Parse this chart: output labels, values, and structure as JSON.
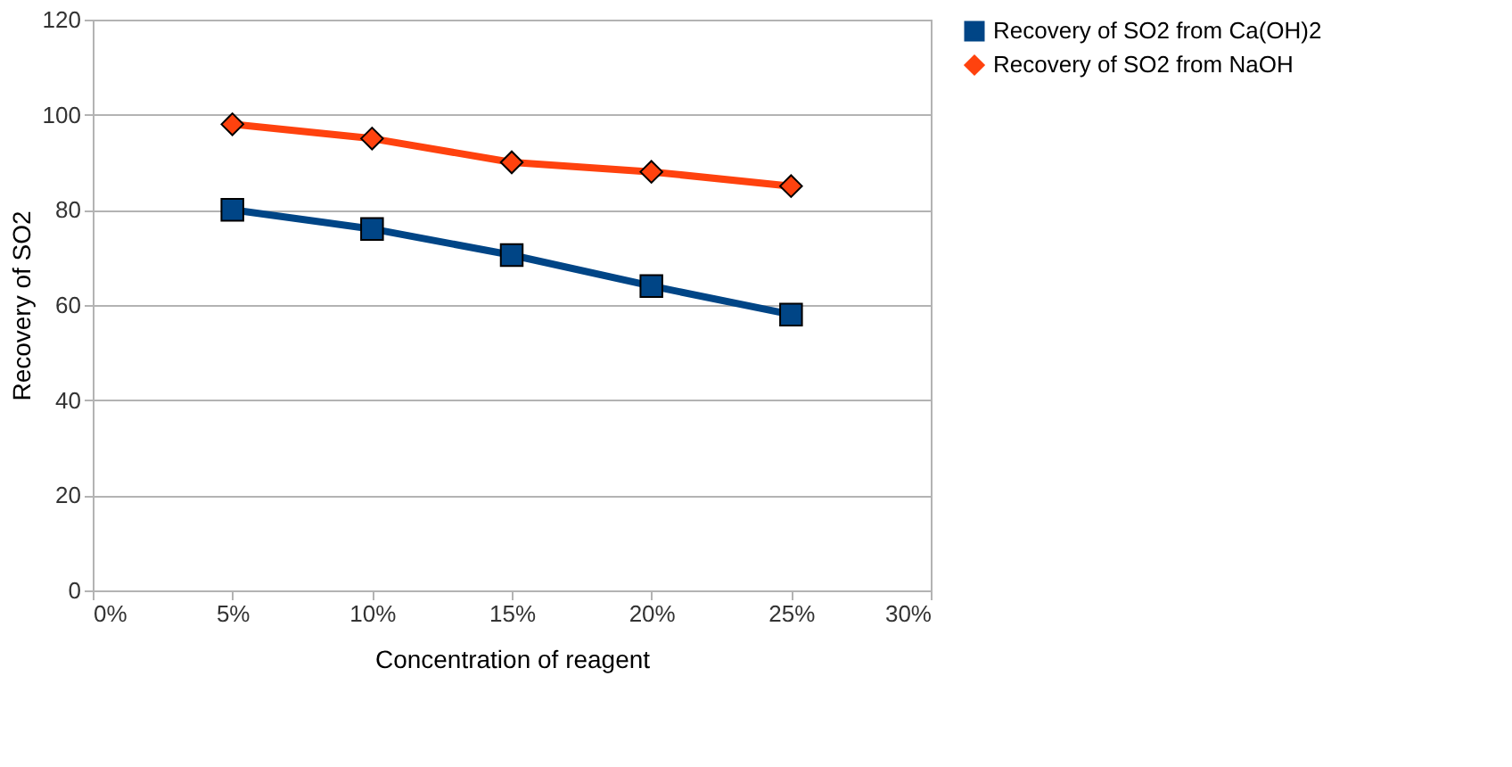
{
  "chart_data": {
    "type": "line",
    "xlabel": "Concentration of reagent",
    "ylabel": "Recovery of SO2",
    "x": [
      5,
      10,
      15,
      20,
      25
    ],
    "xlim": [
      0,
      30
    ],
    "xticks": [
      {
        "value": 0,
        "label": "0%"
      },
      {
        "value": 5,
        "label": "5%"
      },
      {
        "value": 10,
        "label": "10%"
      },
      {
        "value": 15,
        "label": "15%"
      },
      {
        "value": 20,
        "label": "20%"
      },
      {
        "value": 25,
        "label": "25%"
      },
      {
        "value": 30,
        "label": "30%"
      }
    ],
    "ylim": [
      0,
      120
    ],
    "yticks": [
      0,
      20,
      40,
      60,
      80,
      100,
      120
    ],
    "grid": "y",
    "legend": "right",
    "series": [
      {
        "name": "Recovery of SO2 from Ca(OH)2",
        "color": "#004586",
        "marker": "square",
        "values": [
          80,
          76,
          70.5,
          64,
          58
        ]
      },
      {
        "name": "Recovery of SO2 from NaOH",
        "color": "#ff420e",
        "marker": "diamond",
        "values": [
          98,
          95,
          90,
          88,
          85
        ]
      }
    ]
  }
}
